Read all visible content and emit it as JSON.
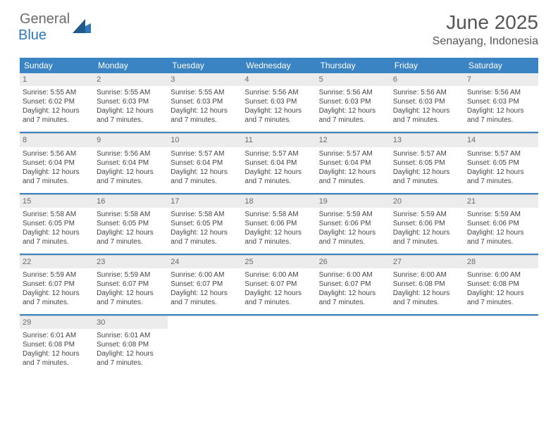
{
  "logo": {
    "general": "General",
    "blue": "Blue"
  },
  "title": "June 2025",
  "subtitle": "Senayang, Indonesia",
  "weekdays": [
    "Sunday",
    "Monday",
    "Tuesday",
    "Wednesday",
    "Thursday",
    "Friday",
    "Saturday"
  ],
  "colors": {
    "header_bar": "#3b84c4",
    "day_number_bg": "#ececec",
    "logo_gray": "#6b6b6b",
    "logo_blue": "#2f77b9"
  },
  "weeks": [
    [
      {
        "n": "1",
        "sr": "5:55 AM",
        "ss": "6:02 PM",
        "dl": "12 hours and 7 minutes."
      },
      {
        "n": "2",
        "sr": "5:55 AM",
        "ss": "6:03 PM",
        "dl": "12 hours and 7 minutes."
      },
      {
        "n": "3",
        "sr": "5:55 AM",
        "ss": "6:03 PM",
        "dl": "12 hours and 7 minutes."
      },
      {
        "n": "4",
        "sr": "5:56 AM",
        "ss": "6:03 PM",
        "dl": "12 hours and 7 minutes."
      },
      {
        "n": "5",
        "sr": "5:56 AM",
        "ss": "6:03 PM",
        "dl": "12 hours and 7 minutes."
      },
      {
        "n": "6",
        "sr": "5:56 AM",
        "ss": "6:03 PM",
        "dl": "12 hours and 7 minutes."
      },
      {
        "n": "7",
        "sr": "5:56 AM",
        "ss": "6:03 PM",
        "dl": "12 hours and 7 minutes."
      }
    ],
    [
      {
        "n": "8",
        "sr": "5:56 AM",
        "ss": "6:04 PM",
        "dl": "12 hours and 7 minutes."
      },
      {
        "n": "9",
        "sr": "5:56 AM",
        "ss": "6:04 PM",
        "dl": "12 hours and 7 minutes."
      },
      {
        "n": "10",
        "sr": "5:57 AM",
        "ss": "6:04 PM",
        "dl": "12 hours and 7 minutes."
      },
      {
        "n": "11",
        "sr": "5:57 AM",
        "ss": "6:04 PM",
        "dl": "12 hours and 7 minutes."
      },
      {
        "n": "12",
        "sr": "5:57 AM",
        "ss": "6:04 PM",
        "dl": "12 hours and 7 minutes."
      },
      {
        "n": "13",
        "sr": "5:57 AM",
        "ss": "6:05 PM",
        "dl": "12 hours and 7 minutes."
      },
      {
        "n": "14",
        "sr": "5:57 AM",
        "ss": "6:05 PM",
        "dl": "12 hours and 7 minutes."
      }
    ],
    [
      {
        "n": "15",
        "sr": "5:58 AM",
        "ss": "6:05 PM",
        "dl": "12 hours and 7 minutes."
      },
      {
        "n": "16",
        "sr": "5:58 AM",
        "ss": "6:05 PM",
        "dl": "12 hours and 7 minutes."
      },
      {
        "n": "17",
        "sr": "5:58 AM",
        "ss": "6:05 PM",
        "dl": "12 hours and 7 minutes."
      },
      {
        "n": "18",
        "sr": "5:58 AM",
        "ss": "6:06 PM",
        "dl": "12 hours and 7 minutes."
      },
      {
        "n": "19",
        "sr": "5:59 AM",
        "ss": "6:06 PM",
        "dl": "12 hours and 7 minutes."
      },
      {
        "n": "20",
        "sr": "5:59 AM",
        "ss": "6:06 PM",
        "dl": "12 hours and 7 minutes."
      },
      {
        "n": "21",
        "sr": "5:59 AM",
        "ss": "6:06 PM",
        "dl": "12 hours and 7 minutes."
      }
    ],
    [
      {
        "n": "22",
        "sr": "5:59 AM",
        "ss": "6:07 PM",
        "dl": "12 hours and 7 minutes."
      },
      {
        "n": "23",
        "sr": "5:59 AM",
        "ss": "6:07 PM",
        "dl": "12 hours and 7 minutes."
      },
      {
        "n": "24",
        "sr": "6:00 AM",
        "ss": "6:07 PM",
        "dl": "12 hours and 7 minutes."
      },
      {
        "n": "25",
        "sr": "6:00 AM",
        "ss": "6:07 PM",
        "dl": "12 hours and 7 minutes."
      },
      {
        "n": "26",
        "sr": "6:00 AM",
        "ss": "6:07 PM",
        "dl": "12 hours and 7 minutes."
      },
      {
        "n": "27",
        "sr": "6:00 AM",
        "ss": "6:08 PM",
        "dl": "12 hours and 7 minutes."
      },
      {
        "n": "28",
        "sr": "6:00 AM",
        "ss": "6:08 PM",
        "dl": "12 hours and 7 minutes."
      }
    ],
    [
      {
        "n": "29",
        "sr": "6:01 AM",
        "ss": "6:08 PM",
        "dl": "12 hours and 7 minutes."
      },
      {
        "n": "30",
        "sr": "6:01 AM",
        "ss": "6:08 PM",
        "dl": "12 hours and 7 minutes."
      },
      null,
      null,
      null,
      null,
      null
    ]
  ],
  "labels": {
    "sunrise": "Sunrise:",
    "sunset": "Sunset:",
    "daylight": "Daylight:"
  }
}
